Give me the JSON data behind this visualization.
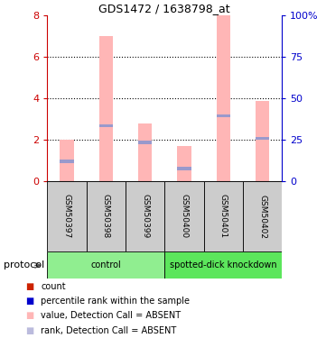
{
  "title": "GDS1472 / 1638798_at",
  "samples": [
    "GSM50397",
    "GSM50398",
    "GSM50399",
    "GSM50400",
    "GSM50401",
    "GSM50402"
  ],
  "pink_bar_heights": [
    2.0,
    7.0,
    2.75,
    1.7,
    8.0,
    3.85
  ],
  "blue_dot_y": [
    0.95,
    2.65,
    1.85,
    0.6,
    3.15,
    2.05
  ],
  "ylim_left": [
    0,
    8
  ],
  "yticks_left": [
    0,
    2,
    4,
    6,
    8
  ],
  "ytick_labels_right": [
    "0",
    "25",
    "50",
    "75",
    "100%"
  ],
  "groups": [
    {
      "label": "control",
      "start": 0,
      "end": 3,
      "color": "#90ee90"
    },
    {
      "label": "spotted-dick knockdown",
      "start": 3,
      "end": 6,
      "color": "#5ce65c"
    }
  ],
  "pink_color": "#ffb6b6",
  "blue_color": "#9999cc",
  "left_axis_color": "#cc0000",
  "right_axis_color": "#0000cc",
  "label_area_color": "#cccccc",
  "legend_items": [
    {
      "color": "#cc2200",
      "label": "count"
    },
    {
      "color": "#0000cc",
      "label": "percentile rank within the sample"
    },
    {
      "color": "#ffb6b6",
      "label": "value, Detection Call = ABSENT"
    },
    {
      "color": "#bbbbdd",
      "label": "rank, Detection Call = ABSENT"
    }
  ],
  "protocol_label": "protocol",
  "figsize": [
    3.61,
    3.75
  ],
  "dpi": 100
}
